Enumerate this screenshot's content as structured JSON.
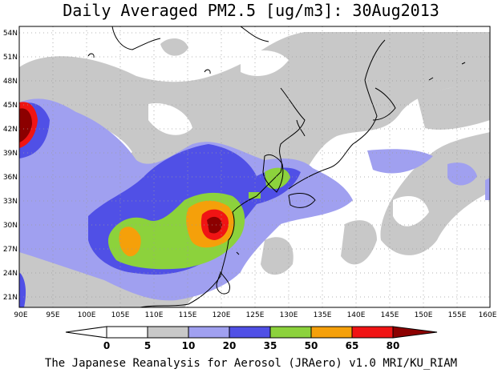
{
  "title": "Daily Averaged PM2.5 [ug/m3]: 30Aug2013",
  "credit": "The Japanese Reanalysis for Aerosol (JRAero) v1.0 MRI/KU_RIAM",
  "map": {
    "lon_range": [
      90,
      160
    ],
    "lat_range": [
      20,
      55
    ],
    "lon_ticks": [
      "90E",
      "95E",
      "100E",
      "105E",
      "110E",
      "115E",
      "120E",
      "125E",
      "130E",
      "135E",
      "140E",
      "145E",
      "150E",
      "155E",
      "160E"
    ],
    "lat_ticks": [
      "21N",
      "24N",
      "27N",
      "30N",
      "33N",
      "36N",
      "39N",
      "42N",
      "45N",
      "48N",
      "51N",
      "54N"
    ],
    "grid": "dotted"
  },
  "colorbar": {
    "labels": [
      "0",
      "5",
      "10",
      "20",
      "35",
      "50",
      "65",
      "80"
    ],
    "colors": [
      "#ffffff",
      "#c8c8c8",
      "#a0a0f0",
      "#5050e6",
      "#8cd23c",
      "#f5a00a",
      "#f01414",
      "#8c0000"
    ]
  }
}
